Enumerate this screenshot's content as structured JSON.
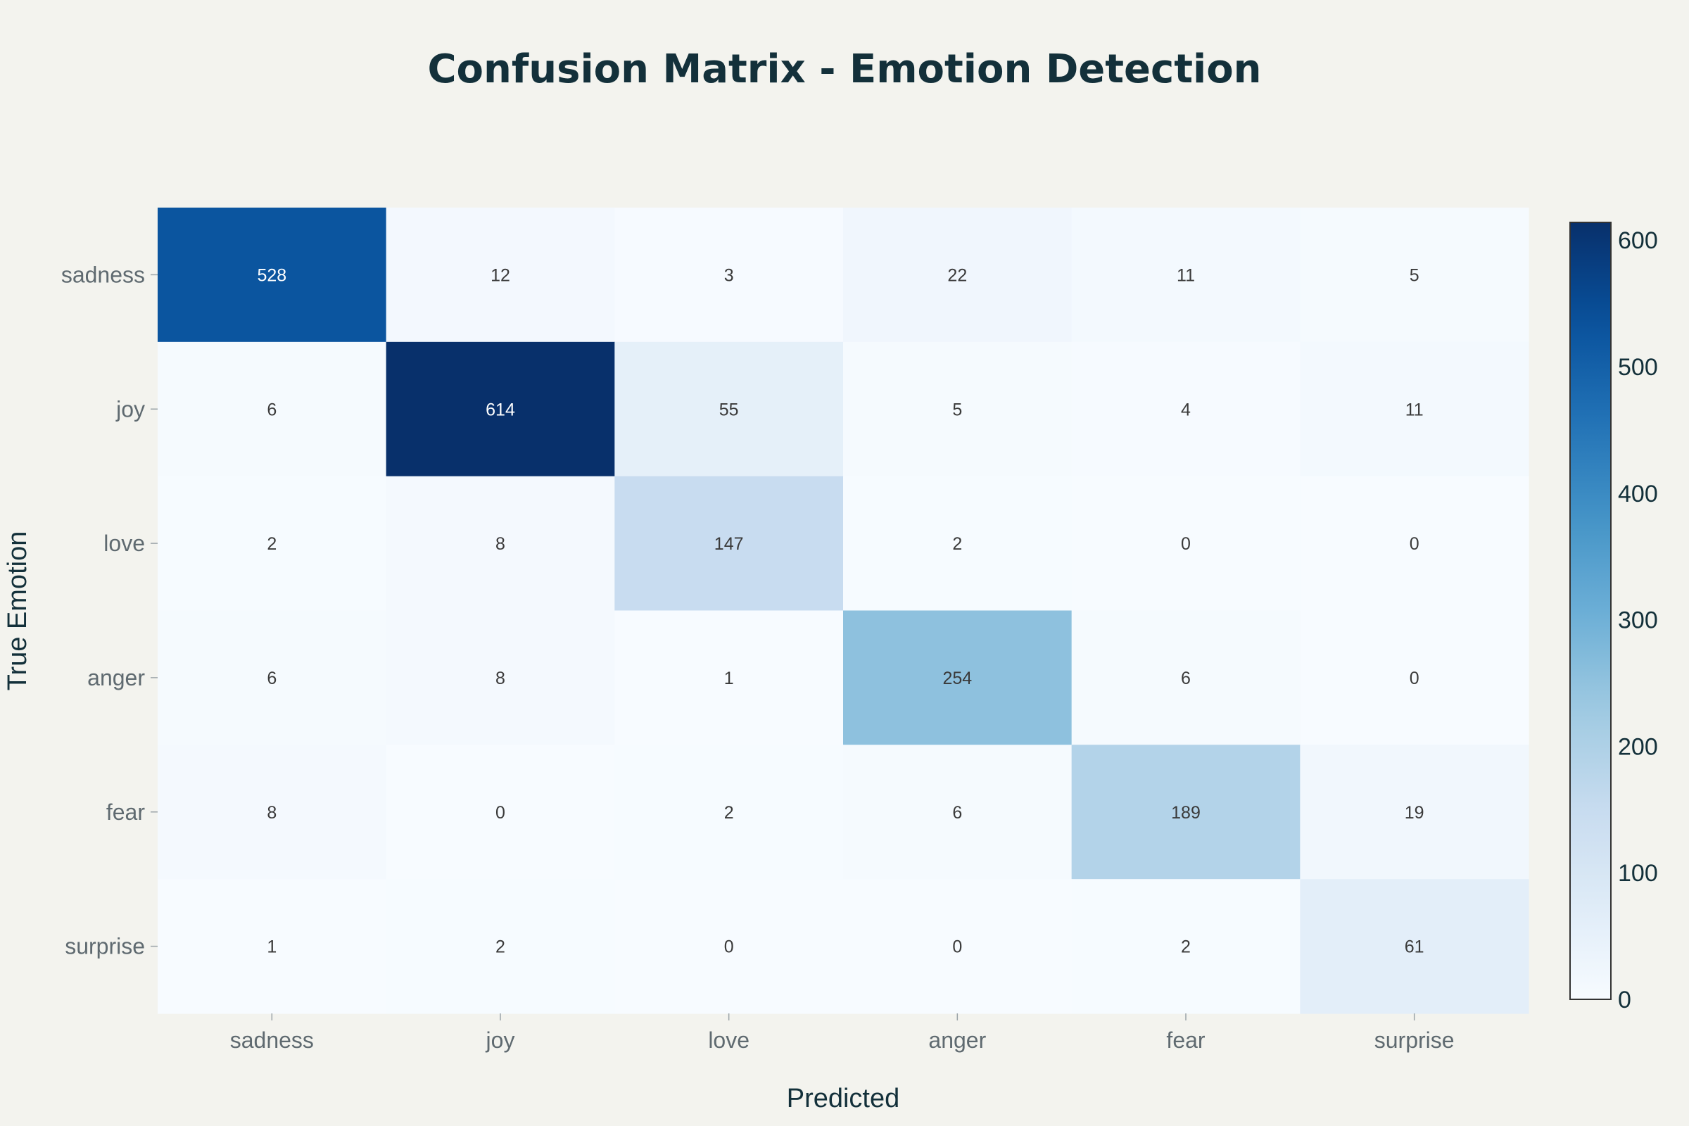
{
  "chart_data": {
    "type": "heatmap",
    "title": "Confusion Matrix - Emotion Detection",
    "xlabel": "Predicted",
    "ylabel": "True Emotion",
    "x_categories": [
      "sadness",
      "joy",
      "love",
      "anger",
      "fear",
      "surprise"
    ],
    "y_categories": [
      "sadness",
      "joy",
      "love",
      "anger",
      "fear",
      "surprise"
    ],
    "values": [
      [
        528,
        12,
        3,
        22,
        11,
        5
      ],
      [
        6,
        614,
        55,
        5,
        4,
        11
      ],
      [
        2,
        8,
        147,
        2,
        0,
        0
      ],
      [
        6,
        8,
        1,
        254,
        6,
        0
      ],
      [
        8,
        0,
        2,
        6,
        189,
        19
      ],
      [
        1,
        2,
        0,
        0,
        2,
        61
      ]
    ],
    "colorscale": "Blues",
    "colorbar": {
      "range": [
        0,
        614
      ],
      "ticks": [
        0,
        100,
        200,
        300,
        400,
        500,
        600
      ]
    },
    "grid": false,
    "legend": "colorbar-right"
  },
  "colors": {
    "background": "#f3f3ee",
    "title": "#13303a",
    "tick_text": "#5f6a70",
    "dark_cell_text": "#ffffff",
    "light_cell_text": "#3a3a3a"
  }
}
